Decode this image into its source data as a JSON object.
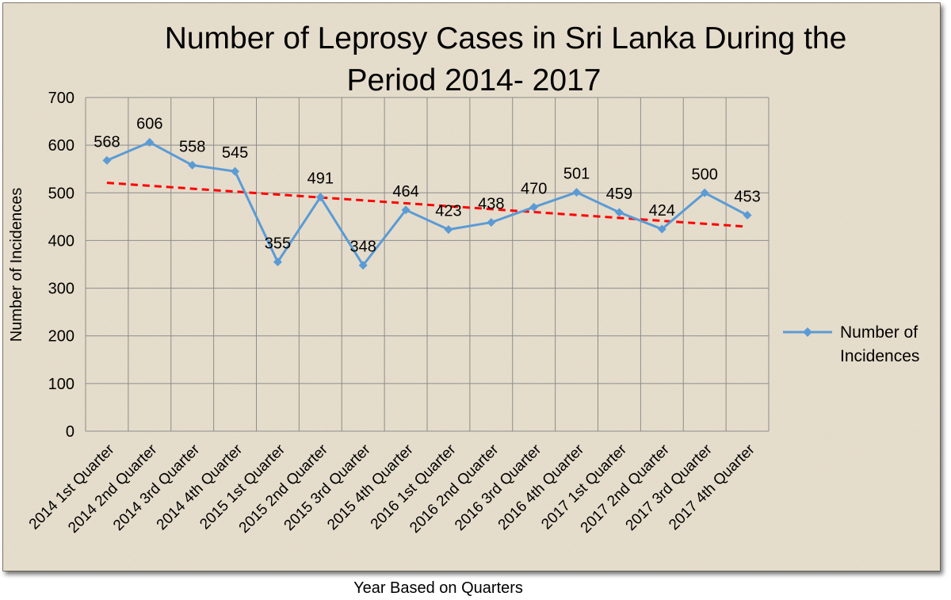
{
  "chart_data": {
    "type": "line",
    "title_line1": "Number of Leprosy Cases in Sri Lanka During the",
    "title_line2": "Period 2014- 2017",
    "xlabel": "Year Based on Quarters",
    "ylabel": "Number of Incidences",
    "ylim": [
      0,
      700
    ],
    "yticks": [
      0,
      100,
      200,
      300,
      400,
      500,
      600,
      700
    ],
    "grid": true,
    "legend_position": "right",
    "categories": [
      "2014 1st Quarter",
      "2014 2nd Quarter",
      "2014 3rd Quarter",
      "2014 4th Quarter",
      "2015 1st Quarter",
      "2015 2nd Quarter",
      "2015 3rd Quarter",
      "2015 4th Quarter",
      "2016 1st Quarter",
      "2016 2nd Quarter",
      "2016 3rd Quarter",
      "2016 4th Quarter",
      "2017 1st Quarter",
      "2017 2nd Quarter",
      "2017 3rd Quarter",
      "2017 4th Quarter"
    ],
    "series": [
      {
        "name_line1": "Number of",
        "name_line2": "Incidences",
        "color": "#5b9bd5",
        "marker": "diamond",
        "values": [
          568,
          606,
          558,
          545,
          355,
          491,
          348,
          464,
          423,
          438,
          470,
          501,
          459,
          424,
          500,
          453
        ]
      }
    ],
    "trendline": {
      "style": "dashed",
      "color": "#ff0000",
      "start": 521,
      "end": 429
    }
  }
}
